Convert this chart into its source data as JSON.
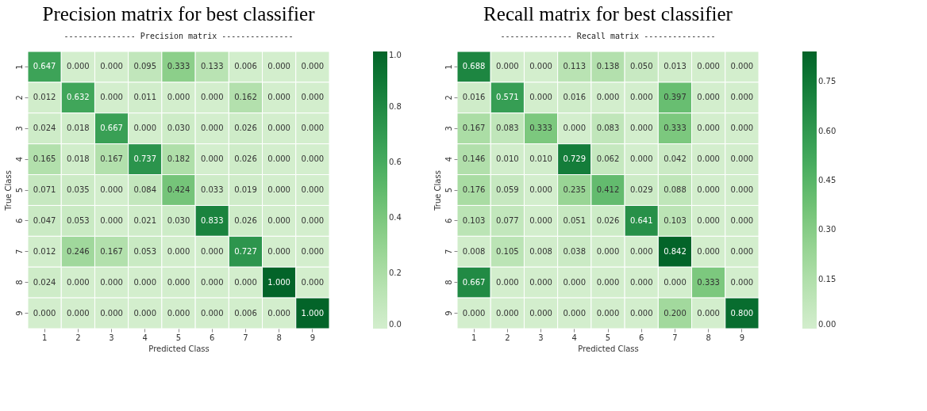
{
  "chart_data": [
    {
      "type": "heatmap",
      "title": "Precision matrix for best classifier",
      "subtitle": "--------------- Precision matrix  ---------------",
      "xlabel": "Predicted Class",
      "ylabel": "True Class",
      "categories": [
        "1",
        "2",
        "3",
        "4",
        "5",
        "6",
        "7",
        "8",
        "9"
      ],
      "y_categories": [
        "1",
        "2",
        "3",
        "4",
        "5",
        "6",
        "7",
        "8",
        "9"
      ],
      "cells": [
        [
          0.647,
          0.0,
          0.0,
          0.095,
          0.333,
          0.133,
          0.006,
          0.0,
          0.0
        ],
        [
          0.012,
          0.632,
          0.0,
          0.011,
          0.0,
          0.0,
          0.162,
          0.0,
          0.0
        ],
        [
          0.024,
          0.018,
          0.667,
          0.0,
          0.03,
          0.0,
          0.026,
          0.0,
          0.0
        ],
        [
          0.165,
          0.018,
          0.167,
          0.737,
          0.182,
          0.0,
          0.026,
          0.0,
          0.0
        ],
        [
          0.071,
          0.035,
          0.0,
          0.084,
          0.424,
          0.033,
          0.019,
          0.0,
          0.0
        ],
        [
          0.047,
          0.053,
          0.0,
          0.021,
          0.03,
          0.833,
          0.026,
          0.0,
          0.0
        ],
        [
          0.012,
          0.246,
          0.167,
          0.053,
          0.0,
          0.0,
          0.727,
          0.0,
          0.0
        ],
        [
          0.024,
          0.0,
          0.0,
          0.0,
          0.0,
          0.0,
          0.0,
          1.0,
          0.0
        ],
        [
          0.0,
          0.0,
          0.0,
          0.0,
          0.0,
          0.0,
          0.006,
          0.0,
          1.0
        ]
      ],
      "cell_labels": [
        [
          "0.647",
          "0.000",
          "0.000",
          "0.095",
          "0.333",
          "0.133",
          "0.006",
          "0.000",
          "0.000"
        ],
        [
          "0.012",
          "0.632",
          "0.000",
          "0.011",
          "0.000",
          "0.000",
          "0.162",
          "0.000",
          "0.000"
        ],
        [
          "0.024",
          "0.018",
          "0.667",
          "0.000",
          "0.030",
          "0.000",
          "0.026",
          "0.000",
          "0.000"
        ],
        [
          "0.165",
          "0.018",
          "0.167",
          "0.737",
          "0.182",
          "0.000",
          "0.026",
          "0.000",
          "0.000"
        ],
        [
          "0.071",
          "0.035",
          "0.000",
          "0.084",
          "0.424",
          "0.033",
          "0.019",
          "0.000",
          "0.000"
        ],
        [
          "0.047",
          "0.053",
          "0.000",
          "0.021",
          "0.030",
          "0.833",
          "0.026",
          "0.000",
          "0.000"
        ],
        [
          "0.012",
          "0.246",
          "0.167",
          "0.053",
          "0.000",
          "0.000",
          "0.727",
          "0.000",
          "0.000"
        ],
        [
          "0.024",
          "0.000",
          "0.000",
          "0.000",
          "0.000",
          "0.000",
          "0.000",
          "1.000",
          "0.000"
        ],
        [
          "0.000",
          "0.000",
          "0.000",
          "0.000",
          "0.000",
          "0.000",
          "0.006",
          "0.000",
          "1.000"
        ]
      ],
      "clim": [
        0,
        1
      ],
      "cticks": [
        {
          "value": 0,
          "label": "0.0"
        },
        0.2,
        0.4,
        0.6,
        0.8,
        {
          "value": 1,
          "label": "1.0"
        }
      ]
    },
    {
      "type": "heatmap",
      "title": "Recall matrix for best classifier",
      "subtitle": "--------------- Recall matrix  ---------------",
      "xlabel": "Predicted Class",
      "ylabel": "True Class",
      "categories": [
        "1",
        "2",
        "3",
        "4",
        "5",
        "6",
        "7",
        "8",
        "9"
      ],
      "y_categories": [
        "1",
        "2",
        "3",
        "4",
        "5",
        "6",
        "7",
        "8",
        "9"
      ],
      "cells": [
        [
          0.688,
          0.0,
          0.0,
          0.113,
          0.138,
          0.05,
          0.013,
          0.0,
          0.0
        ],
        [
          0.016,
          0.571,
          0.0,
          0.016,
          0.0,
          0.0,
          0.397,
          0.0,
          0.0
        ],
        [
          0.167,
          0.083,
          0.333,
          0.0,
          0.083,
          0.0,
          0.333,
          0.0,
          0.0
        ],
        [
          0.146,
          0.01,
          0.01,
          0.729,
          0.062,
          0.0,
          0.042,
          0.0,
          0.0
        ],
        [
          0.176,
          0.059,
          0.0,
          0.235,
          0.412,
          0.029,
          0.088,
          0.0,
          0.0
        ],
        [
          0.103,
          0.077,
          0.0,
          0.051,
          0.026,
          0.641,
          0.103,
          0.0,
          0.0
        ],
        [
          0.008,
          0.105,
          0.008,
          0.038,
          0.0,
          0.0,
          0.842,
          0.0,
          0.0
        ],
        [
          0.667,
          0.0,
          0.0,
          0.0,
          0.0,
          0.0,
          0.0,
          0.333,
          0.0
        ],
        [
          0.0,
          0.0,
          0.0,
          0.0,
          0.0,
          0.0,
          0.2,
          0.0,
          0.8
        ]
      ],
      "cell_labels": [
        [
          "0.688",
          "0.000",
          "0.000",
          "0.113",
          "0.138",
          "0.050",
          "0.013",
          "0.000",
          "0.000"
        ],
        [
          "0.016",
          "0.571",
          "0.000",
          "0.016",
          "0.000",
          "0.000",
          "0.397",
          "0.000",
          "0.000"
        ],
        [
          "0.167",
          "0.083",
          "0.333",
          "0.000",
          "0.083",
          "0.000",
          "0.333",
          "0.000",
          "0.000"
        ],
        [
          "0.146",
          "0.010",
          "0.010",
          "0.729",
          "0.062",
          "0.000",
          "0.042",
          "0.000",
          "0.000"
        ],
        [
          "0.176",
          "0.059",
          "0.000",
          "0.235",
          "0.412",
          "0.029",
          "0.088",
          "0.000",
          "0.000"
        ],
        [
          "0.103",
          "0.077",
          "0.000",
          "0.051",
          "0.026",
          "0.641",
          "0.103",
          "0.000",
          "0.000"
        ],
        [
          "0.008",
          "0.105",
          "0.008",
          "0.038",
          "0.000",
          "0.000",
          "0.842",
          "0.000",
          "0.000"
        ],
        [
          "0.667",
          "0.000",
          "0.000",
          "0.000",
          "0.000",
          "0.000",
          "0.000",
          "0.333",
          "0.000"
        ],
        [
          "0.000",
          "0.000",
          "0.000",
          "0.000",
          "0.000",
          "0.000",
          "0.200",
          "0.000",
          "0.800"
        ]
      ],
      "clim": [
        0,
        0.842
      ],
      "cticks": [
        {
          "value": 0,
          "label": "0.00"
        },
        {
          "value": 0.15,
          "label": "0.15"
        },
        {
          "value": 0.3,
          "label": "0.30"
        },
        {
          "value": 0.45,
          "label": "0.45"
        },
        {
          "value": 0.6,
          "label": "0.60"
        },
        {
          "value": 0.75,
          "label": "0.75"
        }
      ]
    }
  ]
}
